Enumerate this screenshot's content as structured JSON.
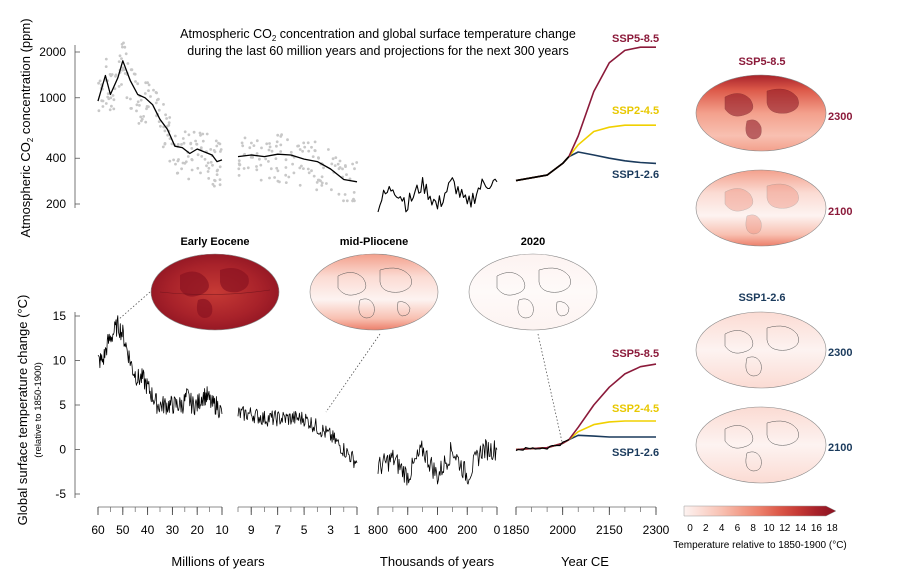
{
  "title": {
    "line1_prefix": "Atmospheric CO",
    "line1_sub": "2",
    "line1_suffix": " concentration and global surface temperature change",
    "line2": "during the last 60 million years and projections for the next 300 years"
  },
  "colors": {
    "ssp585": "#8b1a3a",
    "ssp245": "#f0d000",
    "ssp126": "#1a3a5c",
    "proxy_dots": "#c8c8c8",
    "line": "#000000"
  },
  "co2_axis": {
    "label_prefix": "Atmospheric CO",
    "label_sub": "2",
    "label_suffix": " concentration (ppm)",
    "ticks": [
      "2000",
      "1000",
      "400",
      "200"
    ],
    "scale": "log"
  },
  "temp_axis": {
    "label": "Global surface temperature change (°C)",
    "sublabel": "(relative to 1850-1900)",
    "ticks": [
      "15",
      "10",
      "5",
      "0",
      "-5"
    ]
  },
  "x_segments": [
    {
      "label": "Millions of years",
      "ticks": [
        "60",
        "50",
        "40",
        "30",
        "20",
        "10"
      ]
    },
    {
      "label": "",
      "ticks": [
        "9",
        "7",
        "5",
        "3",
        "1"
      ]
    },
    {
      "label": "Thousands of years",
      "ticks": [
        "800",
        "600",
        "400",
        "200",
        "0"
      ]
    },
    {
      "label": "Year CE",
      "ticks": [
        "1850",
        "2000",
        "2150",
        "2300"
      ]
    }
  ],
  "scenario_labels": {
    "ssp585": "SSP5-8.5",
    "ssp245": "SSP2-4.5",
    "ssp126": "SSP1-2.6"
  },
  "maps": {
    "early_eocene": "Early Eocene",
    "mid_pliocene": "mid-Pliocene",
    "y2020": "2020",
    "ssp585_title": "SSP5-8.5",
    "ssp126_title": "SSP1-2.6",
    "year_2300": "2300",
    "year_2100": "2100"
  },
  "colorbar": {
    "ticks": [
      "0",
      "2",
      "4",
      "6",
      "8",
      "10",
      "12",
      "14",
      "16",
      "18"
    ],
    "label": "Temperature relative to 1850-1900 (°C)",
    "colors": [
      "#fdf3f1",
      "#fbdbd3",
      "#f8c0b1",
      "#f3a08c",
      "#ec7f6a",
      "#dd5a4a",
      "#c63a35",
      "#a8222a",
      "#8a1221"
    ]
  },
  "chart_data": [
    {
      "type": "line",
      "panel": "co2",
      "ylabel": "Atmospheric CO2 concentration (ppm)",
      "ylim": [
        150,
        2400
      ],
      "segments": [
        {
          "xlabel": "Millions of years",
          "x": [
            60,
            57,
            55,
            52,
            50,
            47,
            44,
            41,
            38,
            35,
            32,
            29,
            26,
            23,
            20,
            17,
            14,
            12,
            10
          ],
          "y": [
            950,
            1400,
            1050,
            1350,
            1750,
            1300,
            1050,
            1000,
            900,
            720,
            620,
            480,
            470,
            430,
            460,
            440,
            420,
            380,
            390
          ]
        },
        {
          "xlabel": "Millions of years",
          "x": [
            10,
            9,
            8,
            7,
            6,
            5,
            4,
            3,
            2,
            1
          ],
          "y": [
            410,
            420,
            410,
            425,
            420,
            395,
            380,
            340,
            290,
            280
          ]
        },
        {
          "xlabel": "Thousands of years",
          "x": [
            800,
            700,
            600,
            500,
            400,
            300,
            200,
            100,
            0
          ],
          "y": [
            200,
            260,
            200,
            270,
            190,
            280,
            190,
            270,
            280
          ]
        },
        {
          "xlabel": "Year CE",
          "series": [
            {
              "name": "SSP5-8.5",
              "x": [
                1850,
                1950,
                2000,
                2020,
                2050,
                2100,
                2150,
                2200,
                2250,
                2300
              ],
              "y": [
                285,
                310,
                370,
                410,
                560,
                1100,
                1700,
                2050,
                2150,
                2150
              ]
            },
            {
              "name": "SSP2-4.5",
              "x": [
                1850,
                1950,
                2000,
                2020,
                2050,
                2100,
                2150,
                2200,
                2250,
                2300
              ],
              "y": [
                285,
                310,
                370,
                410,
                490,
                600,
                640,
                660,
                660,
                660
              ]
            },
            {
              "name": "SSP1-2.6",
              "x": [
                1850,
                1950,
                2000,
                2020,
                2050,
                2100,
                2150,
                2200,
                2250,
                2300
              ],
              "y": [
                285,
                310,
                370,
                410,
                440,
                420,
                400,
                385,
                375,
                370
              ]
            }
          ]
        }
      ]
    },
    {
      "type": "line",
      "panel": "temperature",
      "ylabel": "Global surface temperature change (°C)",
      "ylim": [
        -5,
        15
      ],
      "segments": [
        {
          "xlabel": "Millions of years",
          "x": [
            60,
            58,
            56,
            54,
            52,
            50,
            48,
            46,
            44,
            42,
            40,
            38,
            36,
            34,
            32,
            30,
            28,
            26,
            24,
            22,
            20,
            18,
            16,
            14,
            12,
            10
          ],
          "y": [
            10,
            10,
            12,
            13,
            14,
            13,
            11,
            9,
            8,
            8,
            7,
            6,
            5,
            5,
            5,
            5,
            5,
            5,
            6,
            5,
            5,
            6,
            6,
            5,
            5,
            4
          ]
        },
        {
          "xlabel": "Millions of years",
          "x": [
            10,
            9,
            8,
            7,
            6,
            5,
            4,
            3,
            2,
            1
          ],
          "y": [
            4,
            4,
            3.5,
            3.5,
            3.5,
            3.5,
            2.5,
            1.5,
            0,
            -1.5
          ]
        },
        {
          "xlabel": "Thousands of years",
          "x": [
            800,
            700,
            600,
            500,
            400,
            300,
            200,
            100,
            0
          ],
          "y": [
            -2,
            -1,
            -3,
            0,
            -3,
            0,
            -3,
            0,
            0
          ]
        },
        {
          "xlabel": "Year CE",
          "series": [
            {
              "name": "SSP5-8.5",
              "x": [
                1850,
                1950,
                2000,
                2020,
                2050,
                2100,
                2150,
                2200,
                2250,
                2300
              ],
              "y": [
                0,
                0.2,
                0.7,
                1.1,
                2.5,
                5,
                7,
                8.5,
                9.3,
                9.6
              ]
            },
            {
              "name": "SSP2-4.5",
              "x": [
                1850,
                1950,
                2000,
                2020,
                2050,
                2100,
                2150,
                2200,
                2250,
                2300
              ],
              "y": [
                0,
                0.2,
                0.7,
                1.1,
                2,
                2.8,
                3.1,
                3.2,
                3.2,
                3.2
              ]
            },
            {
              "name": "SSP1-2.6",
              "x": [
                1850,
                1950,
                2000,
                2020,
                2050,
                2100,
                2150,
                2200,
                2250,
                2300
              ],
              "y": [
                0,
                0.2,
                0.7,
                1.1,
                1.6,
                1.5,
                1.4,
                1.4,
                1.4,
                1.4
              ]
            }
          ]
        }
      ]
    }
  ]
}
